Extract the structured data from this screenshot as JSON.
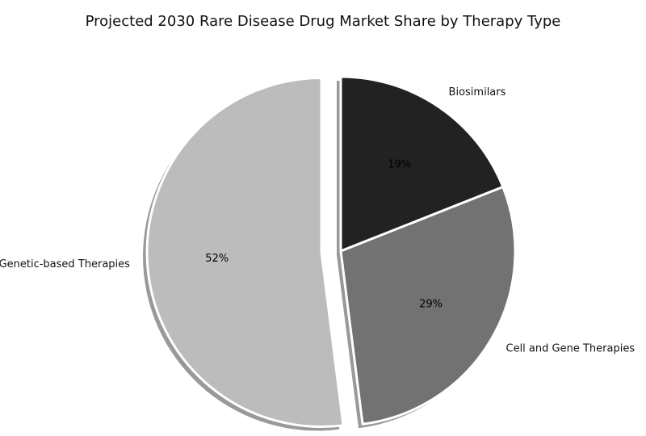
{
  "chart_data": {
    "type": "pie",
    "title": "Projected 2030 Rare Disease Drug Market Share by Therapy Type",
    "categories": [
      "Biosimilars",
      "Cell and Gene Therapies",
      "Genetic-based Therapies"
    ],
    "values": [
      19,
      29,
      52
    ],
    "value_labels": [
      "19%",
      "29%",
      "52%"
    ],
    "colors": [
      "#222222",
      "#727272",
      "#bcbcbc"
    ],
    "start_angle_deg": 90,
    "direction": "clockwise",
    "exploded": [
      "Genetic-based Therapies"
    ],
    "shadow": true,
    "legend": "none"
  }
}
